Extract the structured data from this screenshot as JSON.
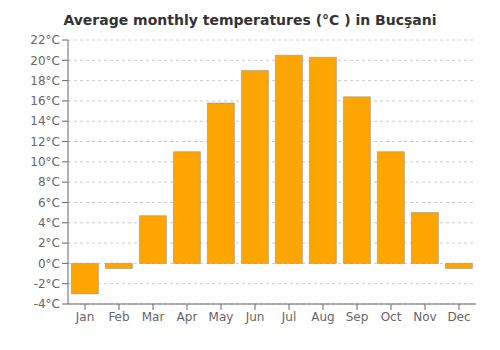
{
  "chart_data": {
    "type": "bar",
    "title": "Average monthly temperatures (°C ) in Bucşani",
    "categories": [
      "Jan",
      "Feb",
      "Mar",
      "Apr",
      "May",
      "Jun",
      "Jul",
      "Aug",
      "Sep",
      "Oct",
      "Nov",
      "Dec"
    ],
    "values": [
      -3.0,
      -0.5,
      4.7,
      11.0,
      15.8,
      19.0,
      20.5,
      20.3,
      16.4,
      11.0,
      5.0,
      -0.5
    ],
    "color": "#FFA500",
    "ylim": [
      -4,
      22
    ],
    "yticks": [
      {
        "value": -4,
        "label": "-4°C"
      },
      {
        "value": -2,
        "label": "-2°C"
      },
      {
        "value": 0,
        "label": "0°C"
      },
      {
        "value": 2,
        "label": "2°C"
      },
      {
        "value": 4,
        "label": "4°C"
      },
      {
        "value": 6,
        "label": "6°C"
      },
      {
        "value": 8,
        "label": "8°C"
      },
      {
        "value": 10,
        "label": "10°C"
      },
      {
        "value": 12,
        "label": "12°C"
      },
      {
        "value": 14,
        "label": "14°C"
      },
      {
        "value": 16,
        "label": "16°C"
      },
      {
        "value": 18,
        "label": "18°C"
      },
      {
        "value": 20,
        "label": "20°C"
      },
      {
        "value": 22,
        "label": "22°C"
      }
    ],
    "grid": true
  }
}
